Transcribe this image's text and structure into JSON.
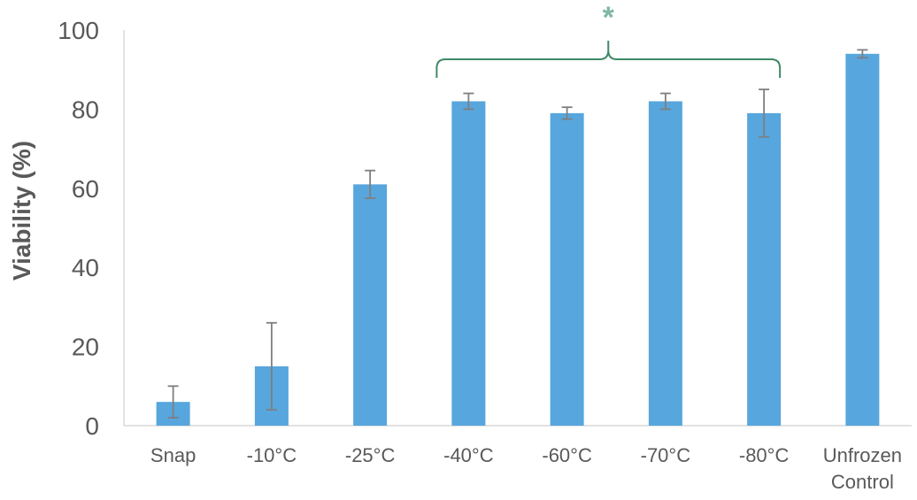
{
  "chart_data": {
    "type": "bar",
    "title": "",
    "xlabel": "",
    "ylabel": "Viability (%)",
    "ylim": [
      0,
      100
    ],
    "yticks": [
      0,
      20,
      40,
      60,
      80,
      100
    ],
    "grid": false,
    "categories": [
      [
        "Snap"
      ],
      [
        "-10°C"
      ],
      [
        "-25°C"
      ],
      [
        "-40°C"
      ],
      [
        "-60°C"
      ],
      [
        "-70°C"
      ],
      [
        "-80°C"
      ],
      [
        "Unfrozen",
        "Control"
      ]
    ],
    "values": [
      6,
      15,
      61,
      82,
      79,
      82,
      79,
      94
    ],
    "errors": [
      4,
      11,
      3.5,
      2,
      1.5,
      2,
      6,
      1
    ],
    "bar_color": "#57a6dd",
    "error_bar_color": "#7f7f7f",
    "annotation": {
      "text": "*",
      "color": "#7fb8a2",
      "bracket_color": "#3f8a66",
      "from_category": 3,
      "to_category": 6
    }
  }
}
